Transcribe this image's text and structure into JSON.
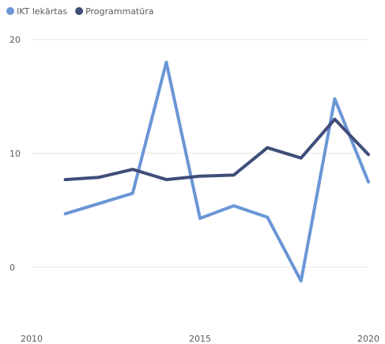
{
  "chart_data": {
    "type": "line",
    "x": [
      2011,
      2012,
      2013,
      2014,
      2015,
      2016,
      2017,
      2018,
      2019,
      2020
    ],
    "series": [
      {
        "name": "IKT lekārtas",
        "color": "#6b96d6",
        "values": [
          4.7,
          5.6,
          6.5,
          18.0,
          4.3,
          5.4,
          4.4,
          -1.2,
          14.8,
          7.5
        ]
      },
      {
        "name": "Programmatūra",
        "color": "#3f4d79",
        "values": [
          7.7,
          7.9,
          8.6,
          7.7,
          8.0,
          8.1,
          10.5,
          9.6,
          13.0,
          9.9
        ]
      }
    ],
    "xlim": [
      2010,
      2020
    ],
    "ylim": [
      -5,
      20
    ],
    "x_ticks": [
      "2010",
      "2015",
      "2020"
    ],
    "y_ticks": [
      "0",
      "10",
      "20"
    ],
    "grid": true,
    "legend_position": "top-left"
  }
}
